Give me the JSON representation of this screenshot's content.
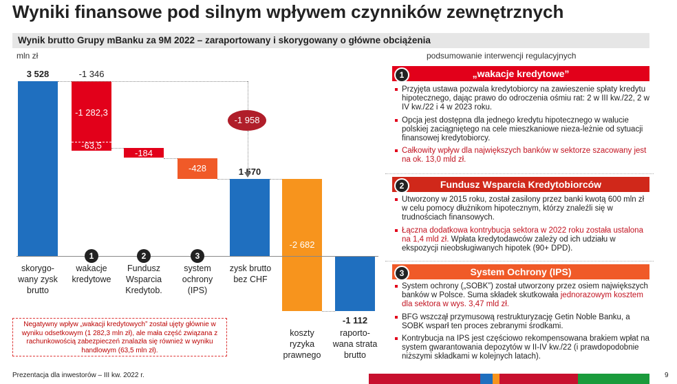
{
  "title": "Wyniki finansowe pod silnym wpływem czynników zewnętrznych",
  "subtitle": "Wynik brutto Grupy mBanku za 9M 2022 – zaraportowany i skorygowany o główne obciążenia",
  "unit": "mln zł",
  "right_header": "podsumowanie interwencji regulacyjnych",
  "chart_data": {
    "type": "bar",
    "subtype": "waterfall",
    "categories": [
      "skorygo-wany zysk brutto",
      "wakacje kredytowe",
      "Fundusz Wsparcia Kredytob.",
      "system ochrony (IPS)",
      "zysk brutto bez CHF",
      "koszty ryzyka prawnego",
      "raporto-wana strata brutto"
    ],
    "values": [
      3528,
      -1346,
      -184,
      -428,
      1570,
      -2682,
      -1112
    ],
    "wakacje_split": [
      -1282.3,
      -63.5
    ],
    "bracket_total": -1958,
    "colors": {
      "blue": "#1f6fbf",
      "red": "#e2001a",
      "orange_red": "#f05a28",
      "orange": "#f7941d",
      "dark_red": "#b01e2a"
    }
  },
  "bar_labels": {
    "v1": "3 528",
    "v2": "-1 346",
    "v2a": "-1 282,3",
    "v2b": "-63,5",
    "v3": "-184",
    "v4": "-428",
    "v5": "1 570",
    "v6": "-2 682",
    "v7": "-1 112",
    "bracket": "-1 958"
  },
  "categories": {
    "c1": "skorygo-\nwany zysk\nbrutto",
    "c2": "wakacje\nkredytowe",
    "c3": "Fundusz\nWsparcia\nKredytob.",
    "c4": "system\nochrony\n(IPS)",
    "c5": "zysk brutto\nbez CHF",
    "c6": "koszty\nryzyka\nprawnego",
    "c7": "raporto-\nwana strata\nbrutto"
  },
  "numbers": {
    "n1": "1",
    "n2": "2",
    "n3": "3"
  },
  "note": "Negatywny wpływ „wakacji kredytowych” został ujęty głównie w wyniku odsetkowym (1 282,3 mln zł), ale mała część związana z rachunkowością zabezpieczeń znalazła się również w wyniku handlowym (63,5 mln zł).",
  "sections": [
    {
      "num": "1",
      "title": "„wakacje kredytowe”",
      "color": "#e2001a",
      "bullets": [
        {
          "text": "Przyjęta ustawa pozwala kredytobiorcy na zawieszenie spłaty kredytu hipotecznego, dając prawo do odroczenia ośmiu rat: 2 w III kw./22, 2 w IV kw./22 i 4 w 2023 roku.",
          "hl": false
        },
        {
          "text": "Opcja jest dostępna dla jednego kredytu hipotecznego w walucie polskiej zaciągniętego na cele mieszkaniowe nieza-leżnie od sytuacji finansowej kredytobiorcy.",
          "hl": false
        },
        {
          "text": "Całkowity wpływ dla największych banków w sektorze szacowany jest na ok. 13,0 mld zł.",
          "hl": true
        }
      ]
    },
    {
      "num": "2",
      "title": "Fundusz Wsparcia Kredytobiorców",
      "color": "#d0281a",
      "bullets": [
        {
          "text": "Utworzony w 2015 roku, został zasilony przez banki kwotą 600 mln zł w celu pomocy dłużnikom hipotecznym, którzy znaleźli się w trudnościach finansowych.",
          "hl": false
        },
        {
          "text": "Łączna dodatkowa kontrybucja sektora w 2022 roku została ustalona na 1,4 mld zł.",
          "hl": true,
          "tail": " Wpłata kredytodawców zależy od ich udziału w ekspozycji nieobsługiwanych hipotek (90+ DPD)."
        }
      ]
    },
    {
      "num": "3",
      "title": "System Ochrony (IPS)",
      "color": "#f05a28",
      "bullets": [
        {
          "text": "System ochrony („SOBK”) został utworzony przez osiem największych banków w Polsce. Suma składek skutkowała ",
          "hl": false,
          "red": "jednorazowym kosztem dla sektora w wys. 3,47 mld zł."
        },
        {
          "text": "BFG wszczął przymusową restrukturyzację Getin Noble Banku, a SOBK wsparł ten proces zebranymi środkami.",
          "hl": false
        },
        {
          "text": "Kontrybucja na IPS jest częściowo rekompensowana brakiem wpłat na system gwarantowania depozytów w II-IV kw./22 (i prawdopodobnie niższymi składkami w kolejnych latach).",
          "hl": false
        }
      ]
    }
  ],
  "footer": "Prezentacja dla inwestorów – III kw. 2022 r.",
  "page_number": "9"
}
